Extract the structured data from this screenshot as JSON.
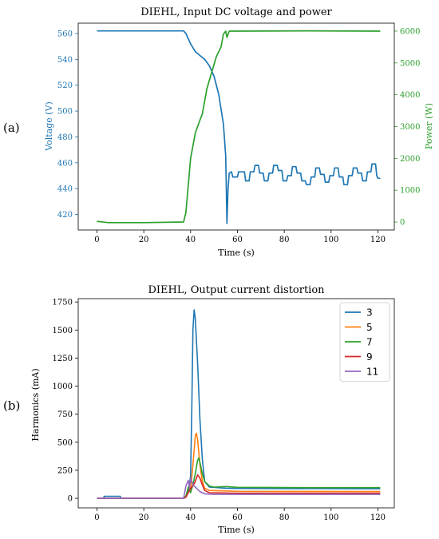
{
  "panel_labels": [
    "(a)",
    "(b)"
  ],
  "chart_data": [
    {
      "type": "line",
      "title": "DIEHL, Input DC voltage and power",
      "xlabel": "Time (s)",
      "ylabel": "Voltage (V)",
      "y2label": "Power (W)",
      "xlim": [
        -8,
        127
      ],
      "ylim": [
        408,
        568
      ],
      "y2lim": [
        -250,
        6250
      ],
      "xticks": [
        0,
        20,
        40,
        60,
        80,
        100,
        120
      ],
      "yticks": [
        420,
        440,
        460,
        480,
        500,
        520,
        540,
        560
      ],
      "y2ticks": [
        0,
        1000,
        2000,
        3000,
        4000,
        5000,
        6000
      ],
      "grid": false,
      "colors": {
        "voltage": "#1f77b4",
        "power": "#2ca02c"
      },
      "series": [
        {
          "axis": "left",
          "color": "#1f77b4",
          "points": [
            [
              0,
              562
            ],
            [
              37,
              562
            ],
            [
              38,
              560
            ],
            [
              40,
              552
            ],
            [
              42,
              546
            ],
            [
              44,
              543
            ],
            [
              46,
              540
            ],
            [
              48,
              535
            ],
            [
              50,
              527
            ],
            [
              52,
              513
            ],
            [
              54,
              490
            ],
            [
              55,
              465
            ],
            [
              55.5,
              413
            ],
            [
              56,
              440
            ],
            [
              56.5,
              452
            ],
            [
              57.5,
              453
            ],
            [
              58,
              449
            ],
            [
              60,
              449
            ],
            [
              60.5,
              453
            ],
            [
              63,
              453
            ],
            [
              63.5,
              446
            ],
            [
              65,
              446
            ],
            [
              65.5,
              453
            ],
            [
              67,
              453
            ],
            [
              67.5,
              458
            ],
            [
              69,
              458
            ],
            [
              69.5,
              452
            ],
            [
              71,
              452
            ],
            [
              71.5,
              446
            ],
            [
              73,
              446
            ],
            [
              73.5,
              452
            ],
            [
              75,
              452
            ],
            [
              75.5,
              458
            ],
            [
              77,
              458
            ],
            [
              77.5,
              454
            ],
            [
              79,
              454
            ],
            [
              79.5,
              446
            ],
            [
              81,
              446
            ],
            [
              81.5,
              450
            ],
            [
              83,
              450
            ],
            [
              83.5,
              457
            ],
            [
              85,
              457
            ],
            [
              85.5,
              452
            ],
            [
              87,
              452
            ],
            [
              87.5,
              446
            ],
            [
              89,
              446
            ],
            [
              89.5,
              443
            ],
            [
              91,
              443
            ],
            [
              91.5,
              449
            ],
            [
              93,
              449
            ],
            [
              93.5,
              456
            ],
            [
              95,
              456
            ],
            [
              95.5,
              451
            ],
            [
              97,
              451
            ],
            [
              97.5,
              445
            ],
            [
              99,
              445
            ],
            [
              99.5,
              450
            ],
            [
              101,
              450
            ],
            [
              101.5,
              456
            ],
            [
              103,
              456
            ],
            [
              103.5,
              449
            ],
            [
              105,
              449
            ],
            [
              105.5,
              443
            ],
            [
              107,
              443
            ],
            [
              107.5,
              450
            ],
            [
              109,
              450
            ],
            [
              109.5,
              456
            ],
            [
              111,
              456
            ],
            [
              111.5,
              452
            ],
            [
              113,
              452
            ],
            [
              113.5,
              446
            ],
            [
              115,
              446
            ],
            [
              115.5,
              453
            ],
            [
              117,
              453
            ],
            [
              117.5,
              459
            ],
            [
              119,
              459
            ],
            [
              119.5,
              450
            ],
            [
              120,
              448
            ],
            [
              121,
              448
            ]
          ]
        },
        {
          "axis": "right",
          "color": "#2ca02c",
          "points": [
            [
              0,
              20
            ],
            [
              5,
              -20
            ],
            [
              20,
              -20
            ],
            [
              37,
              0
            ],
            [
              38,
              300
            ],
            [
              40,
              2000
            ],
            [
              42,
              2800
            ],
            [
              44,
              3200
            ],
            [
              45,
              3400
            ],
            [
              47,
              4200
            ],
            [
              49,
              4700
            ],
            [
              51,
              5200
            ],
            [
              53,
              5500
            ],
            [
              54,
              5900
            ],
            [
              55,
              6000
            ],
            [
              55.5,
              5800
            ],
            [
              56,
              5900
            ],
            [
              56.5,
              6000
            ],
            [
              60,
              6000
            ],
            [
              90,
              6010
            ],
            [
              121,
              6000
            ]
          ]
        }
      ]
    },
    {
      "type": "line",
      "title": "DIEHL, Output current distortion",
      "xlabel": "Time (s)",
      "ylabel": "Harmonics (mA)",
      "xlim": [
        -8,
        127
      ],
      "ylim": [
        -85,
        1780
      ],
      "xticks": [
        0,
        20,
        40,
        60,
        80,
        100,
        120
      ],
      "yticks": [
        0,
        250,
        500,
        750,
        1000,
        1250,
        1500,
        1750
      ],
      "grid": false,
      "legend": "top-right",
      "series": [
        {
          "name": "3",
          "color": "#1f77b4",
          "points": [
            [
              0,
              0
            ],
            [
              3,
              0
            ],
            [
              3,
              18
            ],
            [
              10,
              18
            ],
            [
              10,
              0
            ],
            [
              37,
              0
            ],
            [
              38,
              20
            ],
            [
              39,
              60
            ],
            [
              40,
              200
            ],
            [
              40.5,
              800
            ],
            [
              41,
              1500
            ],
            [
              41.5,
              1680
            ],
            [
              42,
              1600
            ],
            [
              43,
              1200
            ],
            [
              44,
              700
            ],
            [
              45,
              350
            ],
            [
              46,
              150
            ],
            [
              48,
              100
            ],
            [
              55,
              90
            ],
            [
              60,
              88
            ],
            [
              121,
              85
            ]
          ]
        },
        {
          "name": "5",
          "color": "#ff7f0e",
          "points": [
            [
              0,
              0
            ],
            [
              37,
              0
            ],
            [
              38,
              20
            ],
            [
              40,
              80
            ],
            [
              41,
              300
            ],
            [
              42,
              560
            ],
            [
              42.5,
              580
            ],
            [
              43,
              520
            ],
            [
              44,
              300
            ],
            [
              45,
              150
            ],
            [
              46,
              90
            ],
            [
              48,
              70
            ],
            [
              60,
              62
            ],
            [
              121,
              60
            ]
          ]
        },
        {
          "name": "7",
          "color": "#2ca02c",
          "points": [
            [
              0,
              0
            ],
            [
              37,
              0
            ],
            [
              38,
              20
            ],
            [
              39,
              100
            ],
            [
              40,
              50
            ],
            [
              41,
              120
            ],
            [
              42,
              220
            ],
            [
              43,
              340
            ],
            [
              43.5,
              360
            ],
            [
              44,
              320
            ],
            [
              45,
              220
            ],
            [
              46,
              150
            ],
            [
              48,
              110
            ],
            [
              50,
              100
            ],
            [
              55,
              105
            ],
            [
              60,
              98
            ],
            [
              90,
              95
            ],
            [
              121,
              95
            ]
          ]
        },
        {
          "name": "9",
          "color": "#d62728",
          "points": [
            [
              0,
              0
            ],
            [
              37,
              0
            ],
            [
              38,
              10
            ],
            [
              40,
              90
            ],
            [
              41,
              110
            ],
            [
              42,
              150
            ],
            [
              43,
              210
            ],
            [
              44,
              180
            ],
            [
              45,
              120
            ],
            [
              46,
              70
            ],
            [
              48,
              50
            ],
            [
              60,
              45
            ],
            [
              121,
              45
            ]
          ]
        },
        {
          "name": "11",
          "color": "#9467bd",
          "points": [
            [
              0,
              0
            ],
            [
              37,
              0
            ],
            [
              38,
              110
            ],
            [
              39,
              160
            ],
            [
              39.5,
              90
            ],
            [
              40,
              180
            ],
            [
              41,
              120
            ],
            [
              42,
              100
            ],
            [
              43,
              80
            ],
            [
              44,
              60
            ],
            [
              46,
              40
            ],
            [
              50,
              35
            ],
            [
              121,
              35
            ]
          ]
        }
      ]
    }
  ]
}
